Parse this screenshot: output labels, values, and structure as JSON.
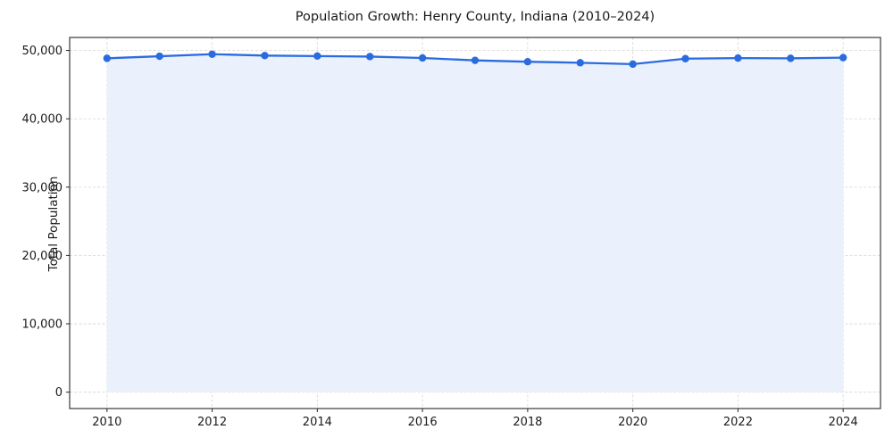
{
  "chart_data": {
    "type": "area",
    "title": "Population Growth: Henry County, Indiana (2010–2024)",
    "xlabel": "",
    "ylabel": "Total Population",
    "x": [
      2010,
      2011,
      2012,
      2013,
      2014,
      2015,
      2016,
      2017,
      2018,
      2019,
      2020,
      2021,
      2022,
      2023,
      2024
    ],
    "series": [
      {
        "name": "Total Population",
        "values": [
          48850,
          49150,
          49450,
          49250,
          49180,
          49100,
          48900,
          48550,
          48350,
          48200,
          48000,
          48800,
          48880,
          48850,
          48950
        ]
      }
    ],
    "baseline": 0,
    "xticks": [
      2010,
      2012,
      2014,
      2016,
      2018,
      2020,
      2022,
      2024
    ],
    "xtick_labels": [
      "2010",
      "2012",
      "2014",
      "2016",
      "2018",
      "2020",
      "2022",
      "2024"
    ],
    "yticks": [
      0,
      10000,
      20000,
      30000,
      40000,
      50000
    ],
    "ytick_labels": [
      "0",
      "10,000",
      "20,000",
      "30,000",
      "40,000",
      "50,000"
    ],
    "xlim": [
      2009.29,
      2024.71
    ],
    "ylim": [
      -2400,
      51900
    ],
    "grid": true,
    "grid_style": "dashed",
    "legend": false,
    "colors": {
      "line": "#2b6be0",
      "marker": "#2b6be0",
      "fill": "#eaf1fc",
      "grid": "#d9d9d9",
      "spine": "#262626",
      "text": "#1a1a1a"
    }
  }
}
